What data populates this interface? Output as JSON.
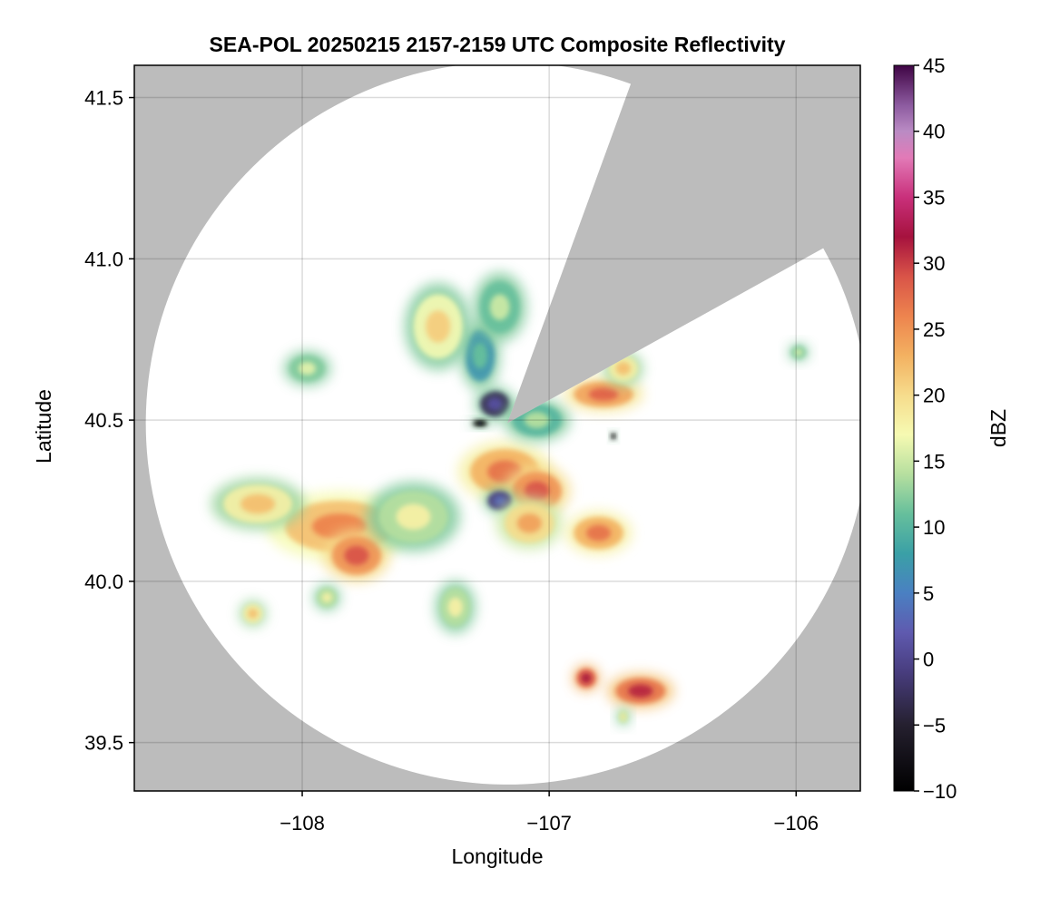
{
  "chart_data": {
    "type": "heatmap",
    "title": "SEA-POL 20250215 2157-2159 UTC Composite Reflectivity",
    "xlabel": "Longitude",
    "ylabel": "Latitude",
    "xlim": [
      -108.68,
      -105.74
    ],
    "ylim": [
      39.35,
      41.6
    ],
    "xticks": [
      -108,
      -107,
      -106
    ],
    "xtick_labels": [
      "−108",
      "−107",
      "−106"
    ],
    "yticks": [
      39.5,
      40.0,
      40.5,
      41.0,
      41.5
    ],
    "ytick_labels": [
      "39.5",
      "40.0",
      "40.5",
      "41.0",
      "41.5"
    ],
    "grid": true,
    "background_color": "#bcbcbc",
    "no_echo_color": "#ffffff",
    "radar_center": {
      "lon": -107.17,
      "lat": 40.49
    },
    "radar_range_lat_deg": 1.12,
    "blocked_sector_bearing_deg": [
      20,
      61
    ],
    "colorbar": {
      "label": "dBZ",
      "colormap": "Spectral_r",
      "range": [
        -10,
        45
      ],
      "ticks": [
        -10,
        -5,
        0,
        5,
        10,
        15,
        20,
        25,
        30,
        35,
        40,
        45
      ],
      "tick_labels": [
        "−10",
        "−5",
        "0",
        "5",
        "10",
        "15",
        "20",
        "25",
        "30",
        "35",
        "40",
        "45"
      ],
      "anchor_colors": [
        [
          -10,
          "#000000"
        ],
        [
          -5,
          "#25202f"
        ],
        [
          -1,
          "#483d7e"
        ],
        [
          2,
          "#5f5aaf"
        ],
        [
          5,
          "#4a80c2"
        ],
        [
          8,
          "#3aa0a6"
        ],
        [
          11,
          "#66bf9c"
        ],
        [
          14,
          "#b6df9f"
        ],
        [
          17,
          "#f6fab2"
        ],
        [
          20,
          "#f6dc8c"
        ],
        [
          23,
          "#f3b161"
        ],
        [
          26,
          "#ed844e"
        ],
        [
          29,
          "#d95448"
        ],
        [
          32,
          "#a6123e"
        ],
        [
          35,
          "#c9307b"
        ],
        [
          38,
          "#e27ab7"
        ],
        [
          40,
          "#ba8bc4"
        ],
        [
          42,
          "#8c5a9f"
        ],
        [
          45,
          "#3f0444"
        ]
      ]
    },
    "echo_cells": [
      {
        "lon": -107.85,
        "lat": 40.17,
        "dbz": 26,
        "size_lon": 0.22,
        "size_lat": 0.08
      },
      {
        "lon": -107.78,
        "lat": 40.08,
        "dbz": 29,
        "size_lon": 0.1,
        "size_lat": 0.06
      },
      {
        "lon": -108.18,
        "lat": 40.24,
        "dbz": 22,
        "size_lon": 0.14,
        "size_lat": 0.06
      },
      {
        "lon": -107.55,
        "lat": 40.2,
        "dbz": 18,
        "size_lon": 0.14,
        "size_lat": 0.08
      },
      {
        "lon": -107.18,
        "lat": 40.34,
        "dbz": 27,
        "size_lon": 0.14,
        "size_lat": 0.07
      },
      {
        "lon": -107.05,
        "lat": 40.28,
        "dbz": 29,
        "size_lon": 0.1,
        "size_lat": 0.06
      },
      {
        "lon": -107.2,
        "lat": 40.25,
        "dbz": 3,
        "size_lon": 0.05,
        "size_lat": 0.03
      },
      {
        "lon": -107.08,
        "lat": 40.18,
        "dbz": 24,
        "size_lon": 0.1,
        "size_lat": 0.06
      },
      {
        "lon": -106.8,
        "lat": 40.15,
        "dbz": 27,
        "size_lon": 0.1,
        "size_lat": 0.05
      },
      {
        "lon": -107.22,
        "lat": 40.55,
        "dbz": 1,
        "size_lon": 0.06,
        "size_lat": 0.04
      },
      {
        "lon": -107.28,
        "lat": 40.49,
        "dbz": -8,
        "size_lon": 0.03,
        "size_lat": 0.01
      },
      {
        "lon": -107.28,
        "lat": 40.7,
        "dbz": 11,
        "size_lon": 0.06,
        "size_lat": 0.08
      },
      {
        "lon": -107.05,
        "lat": 40.5,
        "dbz": 14,
        "size_lon": 0.1,
        "size_lat": 0.05
      },
      {
        "lon": -107.45,
        "lat": 40.79,
        "dbz": 21,
        "size_lon": 0.1,
        "size_lat": 0.1
      },
      {
        "lon": -107.2,
        "lat": 40.85,
        "dbz": 15,
        "size_lon": 0.08,
        "size_lat": 0.08
      },
      {
        "lon": -106.78,
        "lat": 40.58,
        "dbz": 28,
        "size_lon": 0.12,
        "size_lat": 0.04
      },
      {
        "lon": -106.7,
        "lat": 40.66,
        "dbz": 22,
        "size_lon": 0.06,
        "size_lat": 0.04
      },
      {
        "lon": -106.74,
        "lat": 40.45,
        "dbz": -9,
        "size_lon": 0.01,
        "size_lat": 0.01
      },
      {
        "lon": -106.63,
        "lat": 39.66,
        "dbz": 31,
        "size_lon": 0.1,
        "size_lat": 0.04
      },
      {
        "lon": -106.85,
        "lat": 39.7,
        "dbz": 32,
        "size_lon": 0.04,
        "size_lat": 0.03
      },
      {
        "lon": -107.38,
        "lat": 39.92,
        "dbz": 18,
        "size_lon": 0.06,
        "size_lat": 0.06
      },
      {
        "lon": -107.9,
        "lat": 39.95,
        "dbz": 18,
        "size_lon": 0.04,
        "size_lat": 0.03
      },
      {
        "lon": -108.2,
        "lat": 39.9,
        "dbz": 22,
        "size_lon": 0.04,
        "size_lat": 0.03
      },
      {
        "lon": -107.98,
        "lat": 40.66,
        "dbz": 16,
        "size_lon": 0.07,
        "size_lat": 0.04
      },
      {
        "lon": -105.99,
        "lat": 40.71,
        "dbz": 16,
        "size_lon": 0.03,
        "size_lat": 0.02
      },
      {
        "lon": -106.7,
        "lat": 39.58,
        "dbz": 19,
        "size_lon": 0.02,
        "size_lat": 0.02
      }
    ]
  }
}
